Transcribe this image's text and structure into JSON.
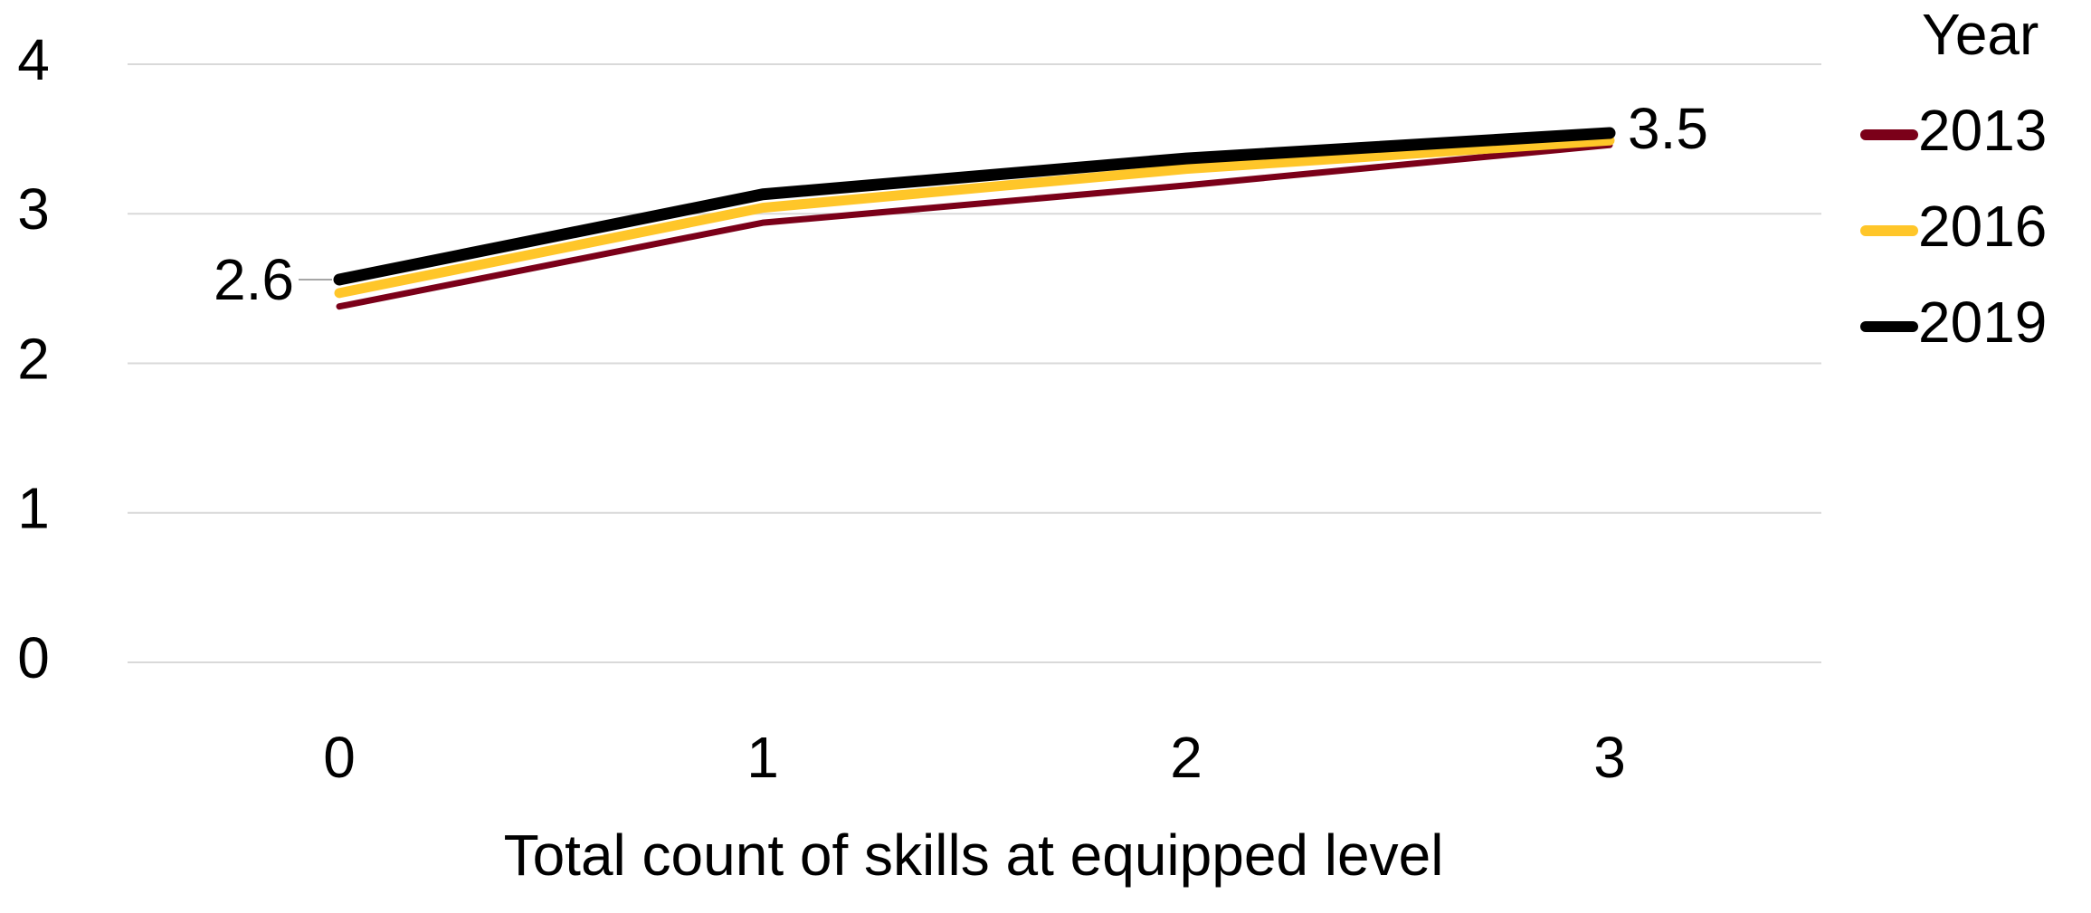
{
  "chart_data": {
    "type": "line",
    "x_label": "Total count of skills at equipped level",
    "x": [
      0,
      1,
      2,
      3
    ],
    "xlim": [
      -0.5,
      3.5
    ],
    "xticks": [
      0,
      1,
      2,
      3
    ],
    "ylim": [
      0,
      4
    ],
    "yticks": [
      0,
      1,
      2,
      3,
      4
    ],
    "grid": true,
    "legend_title": "Year",
    "legend": "right",
    "series": [
      {
        "name": "2013",
        "color": "#7b0019",
        "values": [
          2.38,
          2.94,
          3.19,
          3.46
        ]
      },
      {
        "name": "2016",
        "color": "#ffc629",
        "values": [
          2.47,
          3.04,
          3.3,
          3.49
        ]
      },
      {
        "name": "2019",
        "color": "#000000",
        "values": [
          2.56,
          3.13,
          3.37,
          3.54
        ],
        "value_labels": [
          "2.6",
          null,
          null,
          "3.5"
        ]
      }
    ]
  }
}
